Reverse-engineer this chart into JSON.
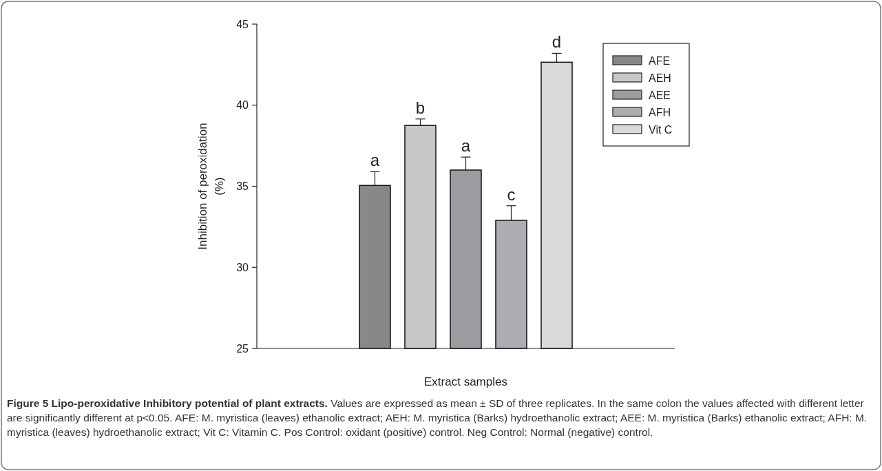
{
  "chart_data": {
    "type": "bar",
    "title": "Figure 5 Lipo-peroxidative Inhibitory potential of plant extracts.",
    "xlabel": "Extract samples",
    "ylabel": "Inhibition of peroxidation\n(%)",
    "categories": [
      null
    ],
    "series": [
      {
        "name": "AFE",
        "color": "#888888",
        "values": [
          35.05
        ],
        "errors": [
          [
            35.05,
            35.9
          ]
        ]
      },
      {
        "name": "AEH",
        "color": "#c6c7c9",
        "values": [
          38.75
        ],
        "errors": [
          [
            38.75,
            39.15
          ]
        ]
      },
      {
        "name": "AEE",
        "color": "#9c9da1",
        "values": [
          36.0
        ],
        "errors": [
          [
            36.0,
            36.8
          ]
        ]
      },
      {
        "name": "AFH",
        "color": "#acadb1",
        "values": [
          32.9
        ],
        "errors": [
          [
            32.9,
            33.8
          ]
        ]
      },
      {
        "name": "Vit C",
        "color": "#d8d9db",
        "values": [
          42.65
        ],
        "errors": [
          [
            42.65,
            43.2
          ]
        ]
      }
    ],
    "ylim": [
      25,
      45
    ],
    "yticks": [
      25,
      30,
      35,
      40,
      45
    ],
    "grid": false,
    "legend": "top right",
    "annotations": [
      "a",
      "b",
      "a",
      "c",
      "d",
      "Values are expressed as mean ± SD of three replicates. In the same colon the values affected with different letter are significantly different at p<0.05. AFE: M. myristica (leaves) ethanolic extract; AEH: M. myristica (Barks) hydroethanolic extract; AEE: M. myristica (Barks) ethanolic extract; AFH: M. myristica (leaves) hydroethanolic extract; Vit C: Vitamin C. Pos Control: oxidant (positive) control. Neg Control: Normal (negative) control."
    ]
  }
}
